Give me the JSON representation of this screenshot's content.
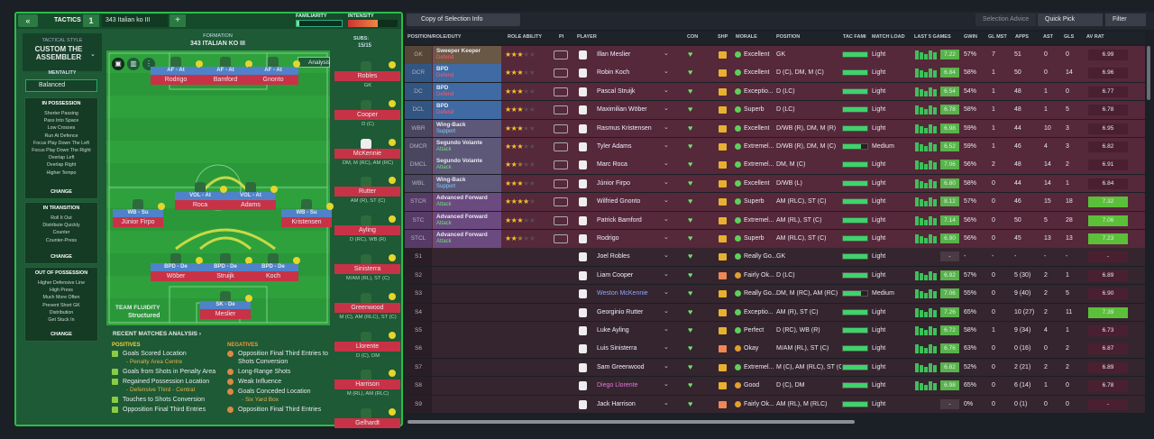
{
  "tactics": {
    "title": "TACTICS",
    "number": "1",
    "name": "343 Italian ko III",
    "familiarity": "FAMILIARITY",
    "intensity": "INTENSITY"
  },
  "style": {
    "label": "TACTICAL STYLE",
    "name": "CUSTOM THE ASSEMBLER",
    "mentality_label": "MENTALITY",
    "mentality": "Balanced"
  },
  "phases": [
    {
      "title": "IN POSSESSION",
      "items": [
        "Shorter Passing",
        "Pass Into Space",
        "Low Crosses",
        "Run At Defence",
        "Focus Play Down The Left",
        "Focus Play Down The Right",
        "Overlap Left",
        "Overlap Right",
        "Higher Tempo"
      ],
      "action": "CHANGE"
    },
    {
      "title": "IN TRANSITION",
      "items": [
        "Roll It Out",
        "Distribute Quickly",
        "Counter",
        "Counter-Press"
      ],
      "action": "CHANGE"
    },
    {
      "title": "OUT OF POSSESSION",
      "items": [
        "Higher Defensive Line",
        "High Press",
        "Much More Often",
        "Prevent Short GK",
        "Distribution",
        "Get Stuck In"
      ],
      "action": "CHANGE"
    }
  ],
  "formation": {
    "label": "FORMATION",
    "name": "343 ITALIAN KO III",
    "subs_label": "SUBS:",
    "subs_count": "15/15",
    "analysis": "Analysis",
    "fluidity_label": "TEAM FLUIDITY",
    "fluidity": "Structured"
  },
  "pitch": [
    {
      "role": "AF - At",
      "name": "Rodrigo"
    },
    {
      "role": "AF - At",
      "name": "Bamford"
    },
    {
      "role": "AF - At",
      "name": "Gnonto"
    },
    {
      "role": "VOL - At",
      "name": "Roca"
    },
    {
      "role": "VOL - At",
      "name": "Adams"
    },
    {
      "role": "WB - Su",
      "name": "Júnior Firpo"
    },
    {
      "role": "WB - Su",
      "name": "Kristensen"
    },
    {
      "role": "BPD - De",
      "name": "Wöber"
    },
    {
      "role": "BPD - De",
      "name": "Struijk"
    },
    {
      "role": "BPD - De",
      "name": "Koch"
    },
    {
      "role": "SK - De",
      "name": "Meslier"
    }
  ],
  "subs": [
    {
      "name": "Robles",
      "position": "GK"
    },
    {
      "name": "Cooper",
      "position": "D (C)"
    },
    {
      "name": "McKennie",
      "position": "DM, M (RC), AM (RC)"
    },
    {
      "name": "Rutter",
      "position": "AM (R), ST (C)"
    },
    {
      "name": "Ayling",
      "position": "D (RC), WB (R)"
    },
    {
      "name": "Sinisterra",
      "position": "M/AM (RL), ST (C)"
    },
    {
      "name": "Greenwood",
      "position": "M (C), AM (RLC), ST (C)"
    },
    {
      "name": "Llorente",
      "position": "D (C), DM"
    },
    {
      "name": "Harrison",
      "position": "M (RL), AM (RLC)"
    },
    {
      "name": "Gelhardt"
    }
  ],
  "analysis": {
    "title": "RECENT MATCHES ANALYSIS ›",
    "positives_label": "POSITIVES",
    "positives": [
      {
        "text": "Goals Scored Location",
        "detail": "- Penalty Area Centre"
      },
      {
        "text": "Goals from Shots in Penalty Area"
      },
      {
        "text": "Regained Possession Location",
        "detail": "- Defensive Third - Central"
      },
      {
        "text": "Touches to Shots Conversion"
      },
      {
        "text": "Opposition Final Third Entries"
      }
    ],
    "negatives_label": "NEGATIVES",
    "negatives": [
      {
        "text": "Opposition Final Third Entries to Shots Conversion"
      },
      {
        "text": "Long-Range Shots"
      },
      {
        "text": "Weak Influence"
      },
      {
        "text": "Goals Conceded Location",
        "detail": "- Six Yard Box"
      },
      {
        "text": "Opposition Final Third Entries"
      }
    ]
  },
  "toolbar": {
    "view": "Copy of Selection Info",
    "advice": "Selection Advice",
    "quick_pick": "Quick Pick",
    "filter": "Filter"
  },
  "table": {
    "columns": [
      "POSITION/ROLE/DUTY",
      "ROLE ABILITY",
      "PI",
      "PLAYER",
      "CON",
      "SHP",
      "MORALE",
      "POSITION",
      "TAC FAMI",
      "MATCH LOAD",
      "LAST 5 GAMES",
      "GWIN",
      "GL MST",
      "APPS",
      "AST",
      "GLS",
      "AV RAT"
    ],
    "rows": [
      {
        "pos": "GK",
        "role": "Sweeper Keeper",
        "duty": "Defend",
        "role_ability": 3,
        "player": "Illan Meslier",
        "morale": "Excellent",
        "position": "GK",
        "match_load": "Light",
        "last5": "7.22",
        "gwin": "57%",
        "glmst": "7",
        "apps": "51",
        "ast": "0",
        "gls": "0",
        "avrat": "6.99"
      },
      {
        "pos": "DCR",
        "role": "BPD",
        "duty": "Defend",
        "role_ability": 3,
        "player": "Robin Koch",
        "morale": "Excellent",
        "position": "D (C), DM, M (C)",
        "match_load": "Light",
        "last5": "6.84",
        "gwin": "58%",
        "glmst": "1",
        "apps": "50",
        "ast": "0",
        "gls": "14",
        "avrat": "6.96"
      },
      {
        "pos": "DC",
        "role": "BPD",
        "duty": "Defend",
        "role_ability": 3,
        "player": "Pascal Struijk",
        "morale": "Exceptio...",
        "position": "D (LC)",
        "match_load": "Light",
        "last5": "6.54",
        "gwin": "54%",
        "glmst": "1",
        "apps": "48",
        "ast": "1",
        "gls": "0",
        "avrat": "6.77"
      },
      {
        "pos": "DCL",
        "role": "BPD",
        "duty": "Defend",
        "role_ability": 3,
        "player": "Maximilian Wöber",
        "morale": "Superb",
        "position": "D (LC)",
        "match_load": "Light",
        "last5": "6.78",
        "gwin": "58%",
        "glmst": "1",
        "apps": "48",
        "ast": "1",
        "gls": "5",
        "avrat": "6.78"
      },
      {
        "pos": "WBR",
        "role": "Wing-Back",
        "duty": "Support",
        "role_ability": 3,
        "player": "Rasmus Kristensen",
        "morale": "Excellent",
        "position": "D/WB (R), DM, M (R)",
        "match_load": "Light",
        "last5": "6.98",
        "gwin": "59%",
        "glmst": "1",
        "apps": "44",
        "ast": "10",
        "gls": "3",
        "avrat": "6.95"
      },
      {
        "pos": "DMCR",
        "role": "Segundo Volante",
        "duty": "Attack",
        "role_ability": 3,
        "player": "Tyler Adams",
        "morale": "Extremel...",
        "position": "D/WB (R), DM, M (C)",
        "match_load": "Medium",
        "last5": "6.52",
        "gwin": "59%",
        "glmst": "1",
        "apps": "46",
        "ast": "4",
        "gls": "3",
        "avrat": "6.82"
      },
      {
        "pos": "DMCL",
        "role": "Segundo Volante",
        "duty": "Attack",
        "role_ability": 2.5,
        "player": "Marc Roca",
        "morale": "Extremel...",
        "position": "DM, M (C)",
        "match_load": "Light",
        "last5": "7.06",
        "gwin": "56%",
        "glmst": "2",
        "apps": "48",
        "ast": "14",
        "gls": "2",
        "avrat": "6.91"
      },
      {
        "pos": "WBL",
        "role": "Wing-Back",
        "duty": "Support",
        "role_ability": 3,
        "player": "Júnior Firpo",
        "morale": "Excellent",
        "position": "D/WB (L)",
        "match_load": "Light",
        "last5": "6.80",
        "gwin": "58%",
        "glmst": "0",
        "apps": "44",
        "ast": "14",
        "gls": "1",
        "avrat": "6.84"
      },
      {
        "pos": "STCR",
        "role": "Advanced Forward",
        "duty": "Attack",
        "role_ability": 4,
        "player": "Wilfried Gnonto",
        "morale": "Superb",
        "position": "AM (RLC), ST (C)",
        "match_load": "Light",
        "last5": "8.12",
        "gwin": "57%",
        "glmst": "0",
        "apps": "46",
        "ast": "15",
        "gls": "18",
        "avrat": "7.32",
        "highlight": true
      },
      {
        "pos": "STC",
        "role": "Advanced Forward",
        "duty": "Attack",
        "role_ability": 3,
        "player": "Patrick Bamford",
        "morale": "Extremel...",
        "position": "AM (RL), ST (C)",
        "match_load": "Light",
        "last5": "7.14",
        "gwin": "56%",
        "glmst": "0",
        "apps": "50",
        "ast": "5",
        "gls": "28",
        "avrat": "7.06",
        "highlight": true
      },
      {
        "pos": "STCL",
        "role": "Advanced Forward",
        "duty": "Attack",
        "role_ability": 2.5,
        "player": "Rodrigo",
        "morale": "Superb",
        "position": "AM (RLC), ST (C)",
        "match_load": "Light",
        "last5": "6.90",
        "gwin": "56%",
        "glmst": "0",
        "apps": "45",
        "ast": "13",
        "gls": "13",
        "avrat": "7.23",
        "highlight": true
      },
      {
        "pos": "S1",
        "player": "Joel Robles",
        "morale": "Really Go...",
        "position": "GK",
        "match_load": "Light",
        "last5": "-",
        "gwin": "-",
        "glmst": "-",
        "apps": "-",
        "ast": "-",
        "gls": "-",
        "avrat": "-"
      },
      {
        "pos": "S2",
        "player": "Liam Cooper",
        "morale": "Fairly Ok...",
        "position": "D (LC)",
        "match_load": "Light",
        "last5": "6.92",
        "gwin": "57%",
        "glmst": "0",
        "apps": "5 (30)",
        "ast": "2",
        "gls": "1",
        "avrat": "6.89"
      },
      {
        "pos": "S3",
        "player": "Weston McKennie",
        "color": "#8fa8ff",
        "morale": "Really Go...",
        "position": "DM, M (RC), AM (RC)",
        "match_load": "Medium",
        "last5": "7.06",
        "gwin": "55%",
        "glmst": "0",
        "apps": "9 (40)",
        "ast": "2",
        "gls": "5",
        "avrat": "6.90"
      },
      {
        "pos": "S4",
        "player": "Georginio Rutter",
        "morale": "Exceptio...",
        "position": "AM (R), ST (C)",
        "match_load": "Light",
        "last5": "7.26",
        "gwin": "65%",
        "glmst": "0",
        "apps": "10 (27)",
        "ast": "2",
        "gls": "11",
        "avrat": "7.39",
        "highlight": true
      },
      {
        "pos": "S5",
        "player": "Luke Ayling",
        "morale": "Perfect",
        "position": "D (RC), WB (R)",
        "match_load": "Light",
        "last5": "6.72",
        "gwin": "58%",
        "glmst": "1",
        "apps": "9 (34)",
        "ast": "4",
        "gls": "1",
        "avrat": "6.73"
      },
      {
        "pos": "S6",
        "player": "Luis Sinisterra",
        "morale": "Okay",
        "position": "M/AM (RL), ST (C)",
        "match_load": "Light",
        "last5": "6.76",
        "gwin": "63%",
        "glmst": "0",
        "apps": "0 (16)",
        "ast": "0",
        "gls": "2",
        "avrat": "6.87"
      },
      {
        "pos": "S7",
        "player": "Sam Greenwood",
        "morale": "Extremel...",
        "position": "M (C), AM (RLC), ST (C)",
        "match_load": "Light",
        "last5": "6.82",
        "gwin": "52%",
        "glmst": "0",
        "apps": "2 (21)",
        "ast": "2",
        "gls": "2",
        "avrat": "6.89"
      },
      {
        "pos": "S8",
        "player": "Diego Llorente",
        "color": "#e07ad8",
        "morale": "Good",
        "position": "D (C), DM",
        "match_load": "Light",
        "last5": "6.98",
        "gwin": "65%",
        "glmst": "0",
        "apps": "6 (14)",
        "ast": "1",
        "gls": "0",
        "avrat": "6.78"
      },
      {
        "pos": "S9",
        "player": "Jack Harrison",
        "morale": "Fairly Ok...",
        "position": "AM (RL), M (RLC)",
        "match_load": "Light",
        "last5": "-",
        "gwin": "0%",
        "glmst": "0",
        "apps": "0 (1)",
        "ast": "0",
        "gls": "0",
        "avrat": "-"
      }
    ]
  }
}
